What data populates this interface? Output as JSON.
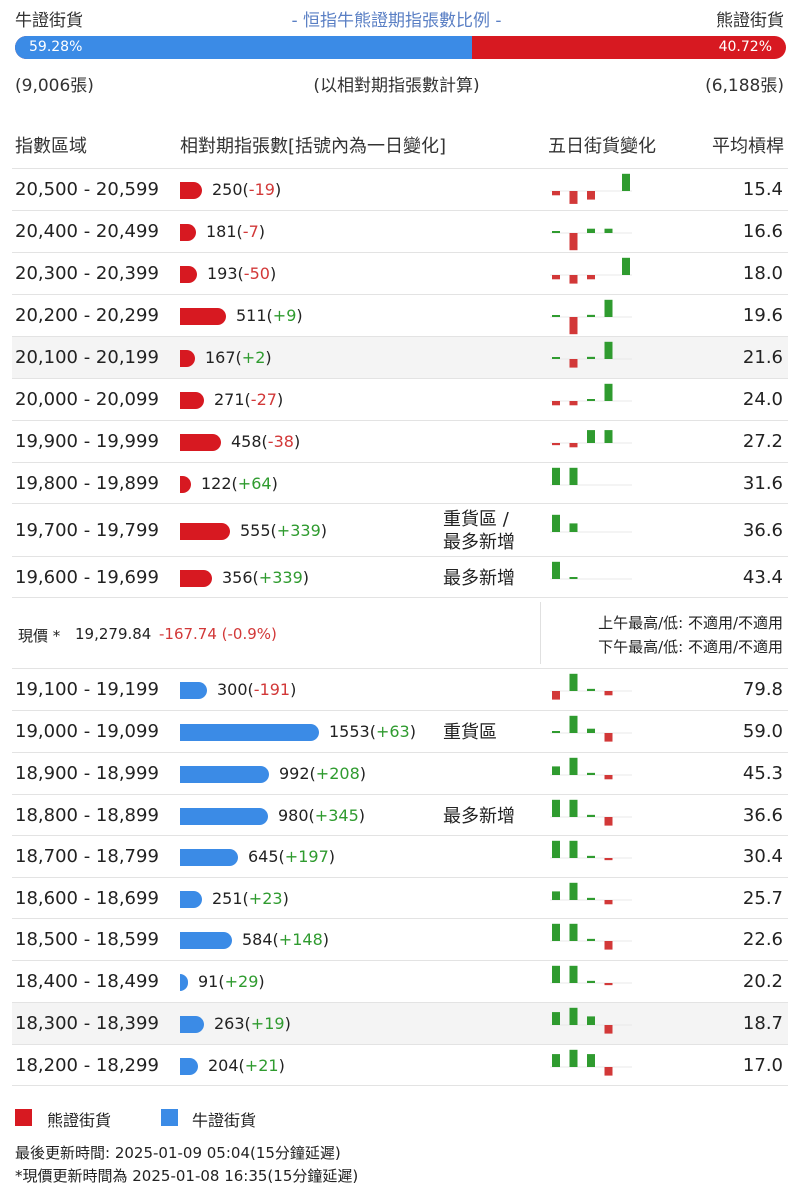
{
  "header": {
    "bull_label": "牛證街貨",
    "title": "- 恒指牛熊證期指張數比例 -",
    "bear_label": "熊證街貨",
    "bull_pct": "59.28%",
    "bear_pct": "40.72%",
    "bull_ratio": 0.5928,
    "bull_count": "(9,006張)",
    "note": "(以相對期指張數計算)",
    "bear_count": "(6,188張)"
  },
  "columns": {
    "range": "指數區域",
    "contracts": "相對期指張數[括號內為一日變化]",
    "five_day": "五日街貨變化",
    "avg_ratio": "平均槓桿"
  },
  "colors": {
    "bear": "#d71921",
    "bull": "#3b8be6",
    "up": "#2f9b2f",
    "down": "#d23838"
  },
  "chart_data": {
    "type": "bar",
    "bear_rows": [
      {
        "range": "20,500 - 20,599",
        "count": 250,
        "change": "-19",
        "tag": "",
        "avg": "15.4",
        "spark": [
          -1,
          -3,
          -2,
          0,
          4
        ]
      },
      {
        "range": "20,400 - 20,499",
        "count": 181,
        "change": "-7",
        "tag": "",
        "avg": "16.6",
        "spark": [
          0.3,
          -4,
          1,
          1,
          0
        ]
      },
      {
        "range": "20,300 - 20,399",
        "count": 193,
        "change": "-50",
        "tag": "",
        "avg": "18.0",
        "spark": [
          -1,
          -2,
          -1,
          0,
          4
        ]
      },
      {
        "range": "20,200 - 20,299",
        "count": 511,
        "change": "+9",
        "tag": "",
        "avg": "19.6",
        "spark": [
          0.3,
          -4,
          0.5,
          4,
          0
        ]
      },
      {
        "range": "20,100 - 20,199",
        "count": 167,
        "change": "+2",
        "tag": "",
        "avg": "21.6",
        "spark": [
          0.3,
          -2,
          0.5,
          4,
          0
        ]
      },
      {
        "range": "20,000 - 20,099",
        "count": 271,
        "change": "-27",
        "tag": "",
        "avg": "24.0",
        "spark": [
          -1,
          -1,
          0.3,
          4,
          0
        ]
      },
      {
        "range": "19,900 - 19,999",
        "count": 458,
        "change": "-38",
        "tag": "",
        "avg": "27.2",
        "spark": [
          -0.5,
          -1,
          3,
          3,
          0
        ]
      },
      {
        "range": "19,800 - 19,899",
        "count": 122,
        "change": "+64",
        "tag": "",
        "avg": "31.6",
        "spark": [
          4,
          4,
          0,
          0,
          0
        ]
      },
      {
        "range": "19,700 - 19,799",
        "count": 555,
        "change": "+339",
        "tag": "重貨區 / 最多新增",
        "avg": "36.6",
        "spark": [
          4,
          2,
          0,
          0,
          0
        ]
      },
      {
        "range": "19,600 - 19,699",
        "count": 356,
        "change": "+339",
        "tag": "最多新增",
        "avg": "43.4",
        "spark": [
          4,
          0.3,
          0,
          0,
          0
        ]
      }
    ],
    "bull_rows": [
      {
        "range": "19,100 - 19,199",
        "count": 300,
        "change": "-191",
        "tag": "",
        "avg": "79.8",
        "spark": [
          -2,
          4,
          0.5,
          -1,
          0
        ]
      },
      {
        "range": "19,000 - 19,099",
        "count": 1553,
        "change": "+63",
        "tag": "重貨區",
        "avg": "59.0",
        "spark": [
          0.3,
          4,
          1,
          -2,
          0
        ]
      },
      {
        "range": "18,900 - 18,999",
        "count": 992,
        "change": "+208",
        "tag": "",
        "avg": "45.3",
        "spark": [
          2,
          4,
          0.5,
          -1,
          0
        ]
      },
      {
        "range": "18,800 - 18,899",
        "count": 980,
        "change": "+345",
        "tag": "最多新增",
        "avg": "36.6",
        "spark": [
          4,
          4,
          0.5,
          -2,
          0
        ]
      },
      {
        "range": "18,700 - 18,799",
        "count": 645,
        "change": "+197",
        "tag": "",
        "avg": "30.4",
        "spark": [
          4,
          4,
          0.5,
          -0.5,
          0
        ]
      },
      {
        "range": "18,600 - 18,699",
        "count": 251,
        "change": "+23",
        "tag": "",
        "avg": "25.7",
        "spark": [
          2,
          4,
          0.5,
          -1,
          0
        ]
      },
      {
        "range": "18,500 - 18,599",
        "count": 584,
        "change": "+148",
        "tag": "",
        "avg": "22.6",
        "spark": [
          4,
          4,
          0.5,
          -2,
          0
        ]
      },
      {
        "range": "18,400 - 18,499",
        "count": 91,
        "change": "+29",
        "tag": "",
        "avg": "20.2",
        "spark": [
          4,
          4,
          0.5,
          -0.5,
          0
        ]
      },
      {
        "range": "18,300 - 18,399",
        "count": 263,
        "change": "+19",
        "tag": "",
        "avg": "18.7",
        "spark": [
          3,
          4,
          2,
          -2,
          0
        ]
      },
      {
        "range": "18,200 - 18,299",
        "count": 204,
        "change": "+21",
        "tag": "",
        "avg": "17.0",
        "spark": [
          3,
          4,
          3,
          -2,
          0
        ]
      }
    ],
    "shaded_bear_index": 4,
    "shaded_bull_index": 8
  },
  "price": {
    "label": "現價 *",
    "value": "19,279.84",
    "change": "-167.74 (-0.9%)",
    "am_high_low": "上午最高/低: 不適用/不適用",
    "pm_high_low": "下午最高/低: 不適用/不適用"
  },
  "legend": {
    "bear": "熊證街貨",
    "bull": "牛證街貨"
  },
  "footer": {
    "updated": "最後更新時間: 2025-01-09 05:04(15分鐘延遲)",
    "price_updated": "*現價更新時間為 2025-01-08 16:35(15分鐘延遲)"
  }
}
